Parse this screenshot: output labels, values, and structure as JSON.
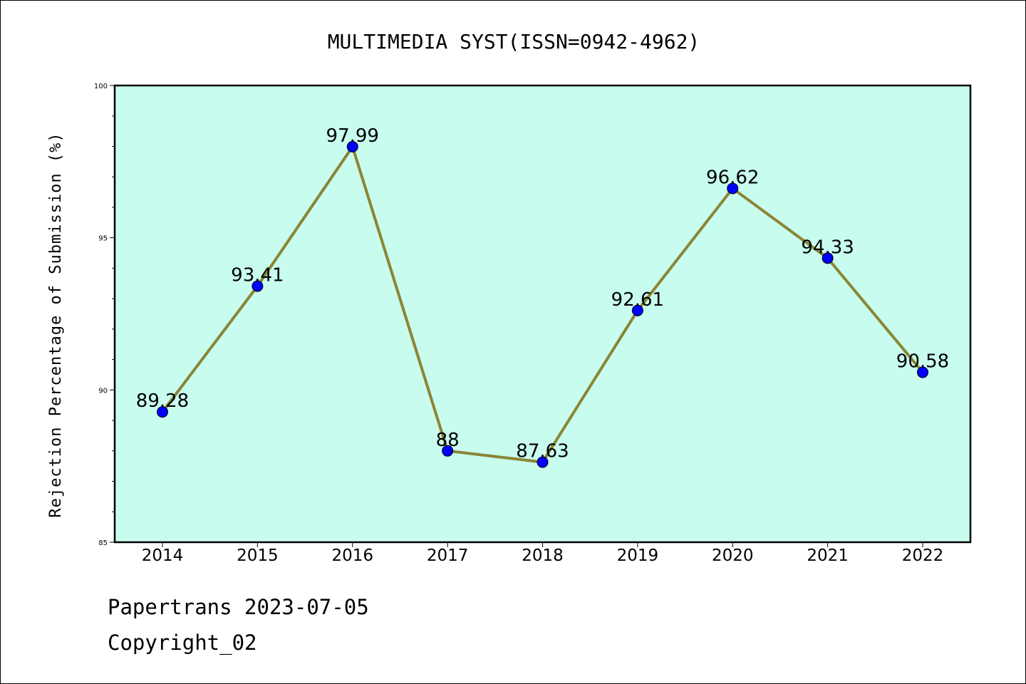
{
  "chart_data": {
    "type": "line",
    "title": "MULTIMEDIA SYST(ISSN=0942-4962)",
    "xlabel": "",
    "ylabel": "Rejection Percentage of Submission (%)",
    "categories": [
      "2014",
      "2015",
      "2016",
      "2017",
      "2018",
      "2019",
      "2020",
      "2021",
      "2022"
    ],
    "series": [
      {
        "values": [
          89.28,
          93.41,
          97.99,
          88,
          87.63,
          92.61,
          96.62,
          94.33,
          90.58
        ],
        "data_labels": [
          "89.28",
          "93.41",
          "97.99",
          "88",
          "87.63",
          "92.61",
          "96.62",
          "94.33",
          "90.58"
        ]
      }
    ],
    "ylim": [
      85,
      100
    ],
    "yticks": [
      "85",
      "90",
      "95",
      "100"
    ],
    "grid": false,
    "legend": "none",
    "colors": {
      "plot_background": "#c8fcee",
      "line": "#8b8535",
      "marker": "#0000ff"
    }
  },
  "footer": {
    "line1": "Papertrans 2023-07-05",
    "line2": "Copyright_02"
  }
}
